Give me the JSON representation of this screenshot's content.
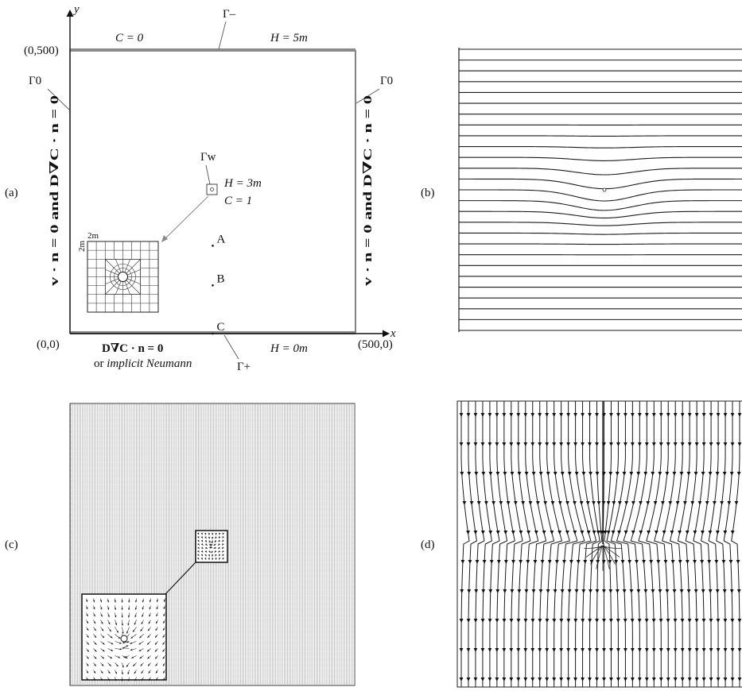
{
  "panels": {
    "a": {
      "label": "(a)",
      "axes": {
        "x": "x",
        "y": "y"
      },
      "corners": {
        "top_left": "(0,500)",
        "bottom_left": "(0,0)",
        "bottom_right": "(500,0)"
      },
      "top": {
        "condition_c": "C = 0",
        "boundary": "Γ–",
        "condition_h": "H = 5m"
      },
      "left": {
        "boundary": "Γ0",
        "condition": "v · n = 0  and  D∇C · n = 0"
      },
      "right": {
        "boundary": "Γ0",
        "condition": "v · n = 0  and  D∇C · n = 0"
      },
      "bottom": {
        "condition_line1": "D∇C · n = 0",
        "condition_line2_prefix": "or ",
        "condition_line2_italic": "implicit Neumann",
        "boundary": "Γ+",
        "condition_h": "H = 0m"
      },
      "well": {
        "boundary": "Γw",
        "head": "H = 3m",
        "concentration": "C = 1"
      },
      "inset": {
        "size_top": "2m",
        "size_left": "2m",
        "cols": 8,
        "rows": 8
      },
      "points": [
        {
          "label": "A",
          "x": 250,
          "y": 155
        },
        {
          "label": "B",
          "x": 250,
          "y": 85
        },
        {
          "label": "C",
          "x": 250,
          "y": 0
        }
      ],
      "colors": {
        "boundary_line": "#8a8a8a"
      }
    },
    "b": {
      "label": "(b)",
      "contour_count": 27
    },
    "c": {
      "label": "(c)",
      "column_count": 170
    },
    "d": {
      "label": "(d)",
      "streamline_count": 40
    }
  }
}
